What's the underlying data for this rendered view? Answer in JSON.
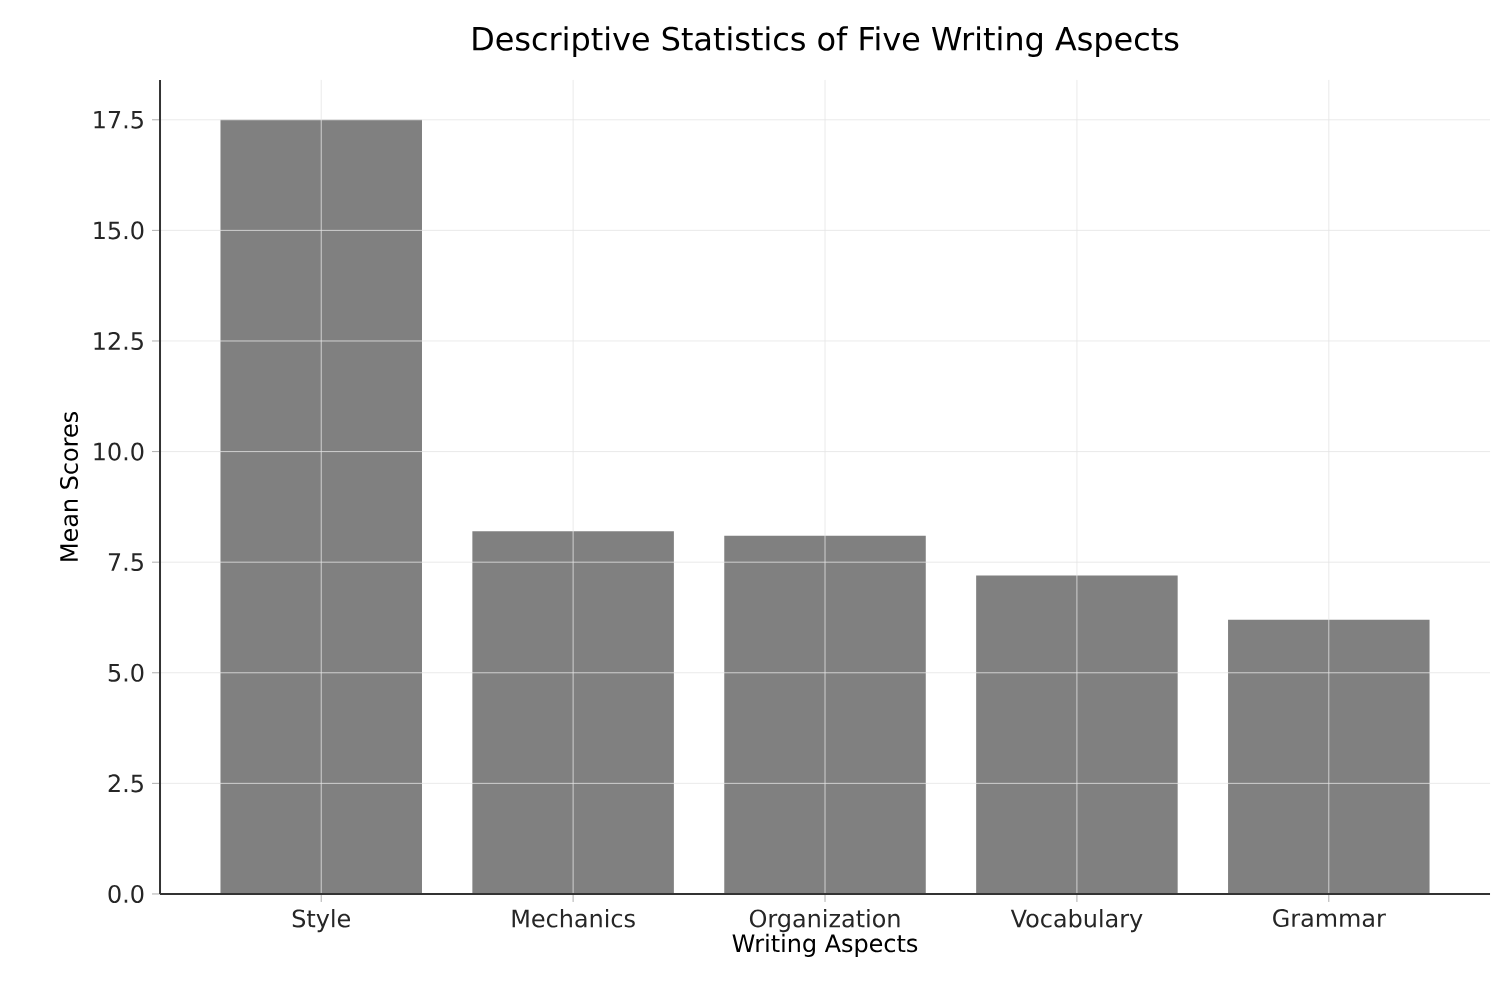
{
  "chart_data": {
    "type": "bar",
    "title": "Descriptive Statistics of Five Writing Aspects",
    "xlabel": "Writing Aspects",
    "ylabel": "Mean Scores",
    "categories": [
      "Style",
      "Mechanics",
      "Organization",
      "Vocabulary",
      "Grammar"
    ],
    "values": [
      17.5,
      8.2,
      8.1,
      7.2,
      6.2
    ],
    "color": "#808080",
    "ylim": [
      0,
      18.4
    ],
    "yticks": [
      {
        "value": 0,
        "label": "0.0"
      },
      {
        "value": 2.5,
        "label": "2.5"
      },
      {
        "value": 5,
        "label": "5.0"
      },
      {
        "value": 7.5,
        "label": "7.5"
      },
      {
        "value": 10,
        "label": "10.0"
      },
      {
        "value": 12.5,
        "label": "12.5"
      },
      {
        "value": 15,
        "label": "15.0"
      },
      {
        "value": 17.5,
        "label": "17.5"
      }
    ],
    "grid": true
  }
}
